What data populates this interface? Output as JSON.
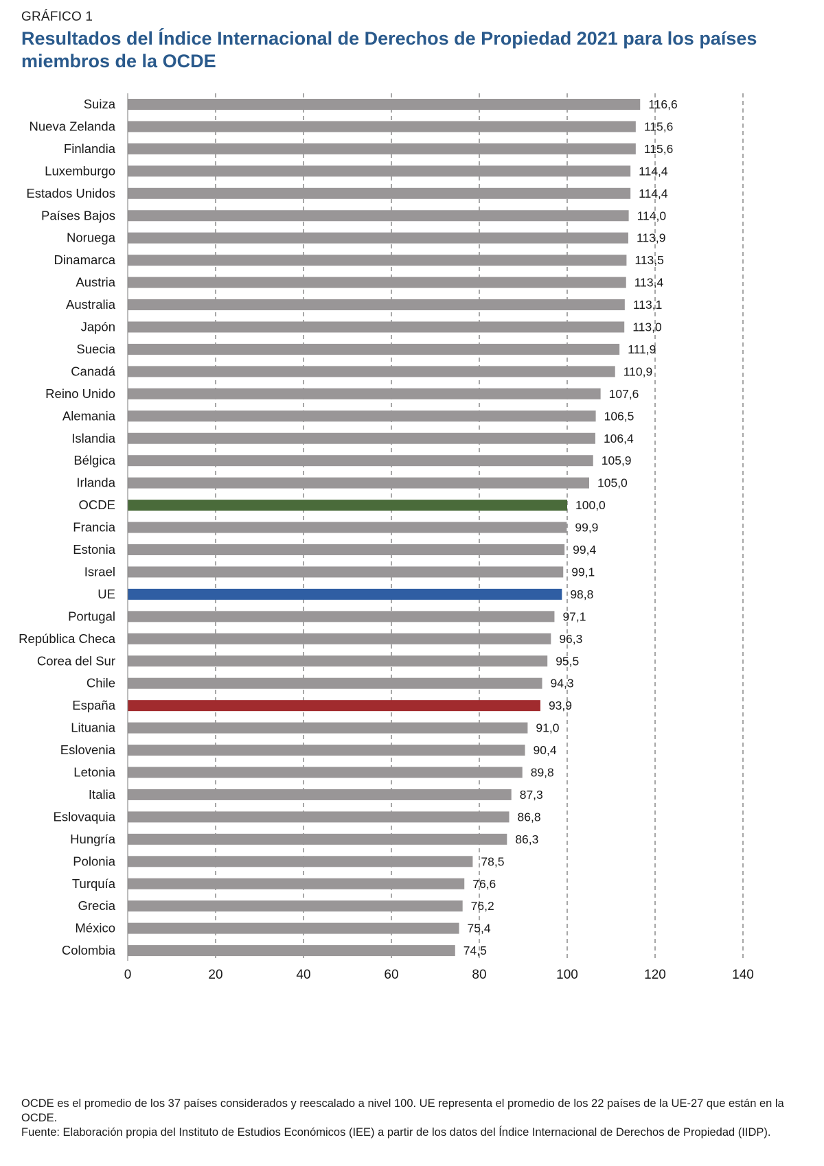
{
  "header": {
    "kicker": "GRÁFICO 1",
    "title": "Resultados del Índice Internacional de Derechos de Propiedad 2021 para los países miembros de la OCDE"
  },
  "notes": {
    "note": "OCDE es el promedio de los 37 países considerados y reescalado a nivel 100. UE representa el promedio de los 22 países de la UE-27 que están en la OCDE.",
    "source": "Fuente: Elaboración propia del Instituto de Estudios Económicos (IEE) a partir de los datos del Índice Internacional de Derechos de Propiedad (IIDP)."
  },
  "colors": {
    "default_bar": "#999697",
    "ocde_bar": "#4a6b3a",
    "ue_bar": "#2f5ea3",
    "espana_bar": "#a12b2e",
    "gridline": "#8a8a8a",
    "title": "#2a5a8c"
  },
  "chart_data": {
    "type": "bar",
    "orientation": "horizontal",
    "title": "Resultados del Índice Internacional de Derechos de Propiedad 2021 para los países miembros de la OCDE",
    "xlabel": "",
    "ylabel": "",
    "xlim": [
      0,
      140
    ],
    "xticks": [
      0,
      20,
      40,
      60,
      80,
      100,
      120,
      140
    ],
    "grid": "vertical dashed",
    "decimal_separator": ",",
    "categories": [
      "Suiza",
      "Nueva Zelanda",
      "Finlandia",
      "Luxemburgo",
      "Estados Unidos",
      "Países Bajos",
      "Noruega",
      "Dinamarca",
      "Austria",
      "Australia",
      "Japón",
      "Suecia",
      "Canadá",
      "Reino Unido",
      "Alemania",
      "Islandia",
      "Bélgica",
      "Irlanda",
      "OCDE",
      "Francia",
      "Estonia",
      "Israel",
      "UE",
      "Portugal",
      "República Checa",
      "Corea del Sur",
      "Chile",
      "España",
      "Lituania",
      "Eslovenia",
      "Letonia",
      "Italia",
      "Eslovaquia",
      "Hungría",
      "Polonia",
      "Turquía",
      "Grecia",
      "México",
      "Colombia"
    ],
    "values": [
      116.6,
      115.6,
      115.6,
      114.4,
      114.4,
      114.0,
      113.9,
      113.5,
      113.4,
      113.1,
      113.0,
      111.9,
      110.9,
      107.6,
      106.5,
      106.4,
      105.9,
      105.0,
      100.0,
      99.9,
      99.4,
      99.1,
      98.8,
      97.1,
      96.3,
      95.5,
      94.3,
      93.9,
      91.0,
      90.4,
      89.8,
      87.3,
      86.8,
      86.3,
      78.5,
      76.6,
      76.2,
      75.4,
      74.5
    ],
    "labels": [
      "116,6",
      "115,6",
      "115,6",
      "114,4",
      "114,4",
      "114,0",
      "113,9",
      "113,5",
      "113,4",
      "113,1",
      "113,0",
      "111,9",
      "110,9",
      "107,6",
      "106,5",
      "106,4",
      "105,9",
      "105,0",
      "100,0",
      "99,9",
      "99,4",
      "99,1",
      "98,8",
      "97,1",
      "96,3",
      "95,5",
      "94,3",
      "93,9",
      "91,0",
      "90,4",
      "89,8",
      "87,3",
      "86,8",
      "86,3",
      "78,5",
      "76,6",
      "76,2",
      "75,4",
      "74,5"
    ],
    "highlights": {
      "OCDE": "ocde_bar",
      "UE": "ue_bar",
      "España": "espana_bar"
    }
  }
}
